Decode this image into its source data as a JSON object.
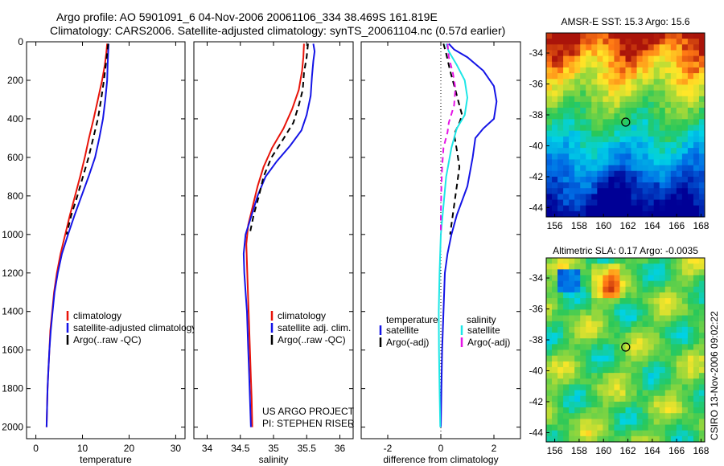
{
  "header": {
    "line1": "Argo profile: AO 5901091_6 04-Nov-2006 20061106_334 38.469S 161.819E",
    "line2": "Climatology: CARS2006. Satellite-adjusted climatology: synTS_20061104.nc (0.57d earlier)"
  },
  "side_note": "CSIRO 13-Nov-2006 09:02:22",
  "project_note": [
    "US ARGO PROJECT",
    "PI: STEPHEN RISER"
  ],
  "colors": {
    "red": "#e8140a",
    "blue": "#1414e6",
    "black": "#000000",
    "cyan": "#1ee6e6",
    "magenta": "#e614e6"
  },
  "chart_data": [
    {
      "type": "line",
      "xlabel": "temperature",
      "ylabel": "",
      "xlim": [
        -2,
        32
      ],
      "ylim": [
        2060,
        0
      ],
      "xticks": [
        0,
        10,
        20,
        30
      ],
      "yticks": [
        0,
        200,
        400,
        600,
        800,
        1000,
        1200,
        1400,
        1600,
        1800,
        2000
      ],
      "legend": [
        "climatology",
        "satellite-adjusted climatology",
        "Argo(..raw -QC)"
      ],
      "series": [
        {
          "name": "climatology",
          "color": "#e8140a",
          "dash": false,
          "points": [
            [
              15.3,
              10
            ],
            [
              15.1,
              60
            ],
            [
              14.8,
              120
            ],
            [
              14.2,
              200
            ],
            [
              13.3,
              300
            ],
            [
              12.4,
              400
            ],
            [
              11.4,
              500
            ],
            [
              10.5,
              600
            ],
            [
              9.5,
              700
            ],
            [
              8.4,
              800
            ],
            [
              7.3,
              900
            ],
            [
              6.3,
              1000
            ],
            [
              5.3,
              1100
            ],
            [
              4.5,
              1200
            ],
            [
              3.9,
              1300
            ],
            [
              3.5,
              1400
            ],
            [
              3.1,
              1500
            ],
            [
              2.9,
              1600
            ],
            [
              2.7,
              1700
            ],
            [
              2.5,
              1800
            ],
            [
              2.4,
              1900
            ],
            [
              2.3,
              2000
            ]
          ]
        },
        {
          "name": "satellite-adjusted climatology",
          "color": "#1414e6",
          "dash": false,
          "points": [
            [
              15.6,
              10
            ],
            [
              15.5,
              60
            ],
            [
              15.4,
              120
            ],
            [
              15.3,
              200
            ],
            [
              14.9,
              300
            ],
            [
              14.4,
              400
            ],
            [
              13.6,
              500
            ],
            [
              12.7,
              600
            ],
            [
              11.3,
              700
            ],
            [
              9.8,
              800
            ],
            [
              8.3,
              900
            ],
            [
              6.9,
              1000
            ],
            [
              5.6,
              1100
            ],
            [
              4.7,
              1200
            ],
            [
              4.0,
              1300
            ],
            [
              3.6,
              1400
            ],
            [
              3.2,
              1500
            ],
            [
              2.9,
              1600
            ],
            [
              2.7,
              1700
            ],
            [
              2.5,
              1800
            ],
            [
              2.4,
              1900
            ],
            [
              2.3,
              2000
            ]
          ]
        },
        {
          "name": "Argo(..raw -QC)",
          "color": "#000000",
          "dash": true,
          "points": [
            [
              15.5,
              10
            ],
            [
              15.3,
              60
            ],
            [
              15.0,
              120
            ],
            [
              14.6,
              200
            ],
            [
              14.0,
              300
            ],
            [
              13.3,
              400
            ],
            [
              12.3,
              500
            ],
            [
              11.3,
              600
            ],
            [
              10.1,
              700
            ],
            [
              8.9,
              800
            ],
            [
              7.6,
              900
            ],
            [
              6.6,
              1000
            ]
          ]
        }
      ]
    },
    {
      "type": "line",
      "xlabel": "salinity",
      "ylabel": "",
      "xlim": [
        33.8,
        36.2
      ],
      "ylim": [
        2060,
        0
      ],
      "xticks": [
        34,
        34.5,
        35,
        35.5,
        36
      ],
      "yticks": [
        0,
        200,
        400,
        600,
        800,
        1000,
        1200,
        1400,
        1600,
        1800,
        2000
      ],
      "legend": [
        "climatology",
        "satellite adj. clim.",
        "Argo(..raw -QC)"
      ],
      "series": [
        {
          "name": "climatology",
          "color": "#e8140a",
          "dash": false,
          "points": [
            [
              35.46,
              10
            ],
            [
              35.45,
              80
            ],
            [
              35.43,
              150
            ],
            [
              35.38,
              250
            ],
            [
              35.28,
              350
            ],
            [
              35.15,
              450
            ],
            [
              34.98,
              550
            ],
            [
              34.85,
              650
            ],
            [
              34.76,
              750
            ],
            [
              34.69,
              850
            ],
            [
              34.62,
              950
            ],
            [
              34.59,
              1050
            ],
            [
              34.6,
              1150
            ],
            [
              34.61,
              1250
            ],
            [
              34.62,
              1350
            ],
            [
              34.63,
              1450
            ],
            [
              34.64,
              1550
            ],
            [
              34.65,
              1650
            ],
            [
              34.66,
              1750
            ],
            [
              34.67,
              1850
            ],
            [
              34.68,
              2000
            ]
          ]
        },
        {
          "name": "satellite adj. clim.",
          "color": "#1414e6",
          "dash": false,
          "points": [
            [
              35.6,
              10
            ],
            [
              35.62,
              50
            ],
            [
              35.6,
              100
            ],
            [
              35.58,
              180
            ],
            [
              35.56,
              280
            ],
            [
              35.5,
              380
            ],
            [
              35.42,
              460
            ],
            [
              35.25,
              540
            ],
            [
              35.05,
              620
            ],
            [
              34.88,
              700
            ],
            [
              34.76,
              800
            ],
            [
              34.67,
              900
            ],
            [
              34.58,
              1000
            ],
            [
              34.55,
              1100
            ],
            [
              34.56,
              1200
            ],
            [
              34.58,
              1300
            ],
            [
              34.6,
              1400
            ],
            [
              34.61,
              1500
            ],
            [
              34.62,
              1600
            ],
            [
              34.63,
              1700
            ],
            [
              34.64,
              1800
            ],
            [
              34.66,
              2000
            ]
          ]
        },
        {
          "name": "Argo(..raw -QC)",
          "color": "#000000",
          "dash": true,
          "points": [
            [
              35.52,
              10
            ],
            [
              35.5,
              80
            ],
            [
              35.46,
              160
            ],
            [
              35.44,
              250
            ],
            [
              35.38,
              330
            ],
            [
              35.3,
              420
            ],
            [
              35.12,
              520
            ],
            [
              34.97,
              600
            ],
            [
              34.85,
              700
            ],
            [
              34.78,
              800
            ],
            [
              34.7,
              900
            ],
            [
              34.64,
              1000
            ]
          ]
        }
      ]
    },
    {
      "type": "line",
      "xlabel": "difference from climatology",
      "ylabel": "",
      "xlim": [
        -3,
        3
      ],
      "ylim": [
        2060,
        0
      ],
      "xticks": [
        -2,
        0,
        2
      ],
      "yticks": [
        0,
        200,
        400,
        600,
        800,
        1000,
        1200,
        1400,
        1600,
        1800,
        2000
      ],
      "legend_temperature": {
        "heading": "temperature",
        "items": [
          "satellite",
          "Argo(-adj)"
        ]
      },
      "legend_salinity": {
        "heading": "salinity",
        "items": [
          "satellite",
          "Argo(-adj)"
        ]
      },
      "series": [
        {
          "name": "temperature satellite",
          "color": "#1414e6",
          "dash": false,
          "points": [
            [
              0.3,
              10
            ],
            [
              0.5,
              40
            ],
            [
              1.0,
              80
            ],
            [
              1.6,
              150
            ],
            [
              2.0,
              230
            ],
            [
              2.1,
              310
            ],
            [
              2.0,
              400
            ],
            [
              1.6,
              450
            ],
            [
              1.3,
              500
            ],
            [
              1.2,
              600
            ],
            [
              1.0,
              750
            ],
            [
              0.6,
              900
            ],
            [
              0.4,
              1000
            ],
            [
              0.25,
              1100
            ],
            [
              0.15,
              1200
            ],
            [
              0.1,
              1400
            ],
            [
              0.05,
              1600
            ],
            [
              0.02,
              1800
            ],
            [
              0.0,
              2000
            ]
          ]
        },
        {
          "name": "temperature Argo(-adj)",
          "color": "#000000",
          "dash": true,
          "points": [
            [
              0.1,
              10
            ],
            [
              0.2,
              60
            ],
            [
              0.35,
              150
            ],
            [
              0.55,
              250
            ],
            [
              0.7,
              330
            ],
            [
              0.8,
              380
            ],
            [
              0.7,
              420
            ],
            [
              0.5,
              480
            ],
            [
              0.6,
              560
            ],
            [
              0.7,
              650
            ],
            [
              0.6,
              750
            ],
            [
              0.5,
              850
            ],
            [
              0.35,
              1000
            ]
          ]
        },
        {
          "name": "salinity satellite",
          "color": "#1ee6e6",
          "dash": false,
          "points": [
            [
              0.2,
              10
            ],
            [
              0.3,
              50
            ],
            [
              0.6,
              120
            ],
            [
              0.9,
              200
            ],
            [
              1.0,
              290
            ],
            [
              0.9,
              380
            ],
            [
              0.6,
              450
            ],
            [
              0.4,
              550
            ],
            [
              0.2,
              700
            ],
            [
              0.1,
              850
            ],
            [
              0.0,
              1000
            ],
            [
              -0.05,
              1200
            ],
            [
              -0.08,
              1400
            ],
            [
              -0.07,
              1600
            ],
            [
              -0.05,
              1800
            ],
            [
              -0.02,
              2000
            ]
          ]
        },
        {
          "name": "salinity Argo(-adj)",
          "color": "#e614e6",
          "dash": true,
          "points": [
            [
              0.25,
              10
            ],
            [
              0.3,
              80
            ],
            [
              0.45,
              160
            ],
            [
              0.55,
              240
            ],
            [
              0.5,
              330
            ],
            [
              0.3,
              420
            ],
            [
              0.25,
              470
            ],
            [
              0.1,
              550
            ],
            [
              0.05,
              650
            ],
            [
              0.02,
              750
            ],
            [
              0.0,
              900
            ],
            [
              0.0,
              1000
            ]
          ]
        }
      ]
    }
  ],
  "maps": [
    {
      "title": "AMSR-E SST: 15.3 Argo: 15.6",
      "kind": "sst",
      "xticks": [
        156,
        158,
        160,
        162,
        164,
        166,
        168
      ],
      "yticks": [
        -34,
        -36,
        -38,
        -40,
        -42,
        -44
      ],
      "xlim": [
        155.3,
        168.3
      ],
      "ylim": [
        -32.7,
        -44.6
      ],
      "marker": [
        161.82,
        -38.47
      ]
    },
    {
      "title": "Altimetric SLA: 0.17 Argo: -0.0035",
      "kind": "sla",
      "xticks": [
        156,
        158,
        160,
        162,
        164,
        166,
        168
      ],
      "yticks": [
        -34,
        -36,
        -38,
        -40,
        -42,
        -44
      ],
      "xlim": [
        155.3,
        168.3
      ],
      "ylim": [
        -32.7,
        -44.6
      ],
      "marker": [
        161.82,
        -38.47
      ]
    }
  ]
}
